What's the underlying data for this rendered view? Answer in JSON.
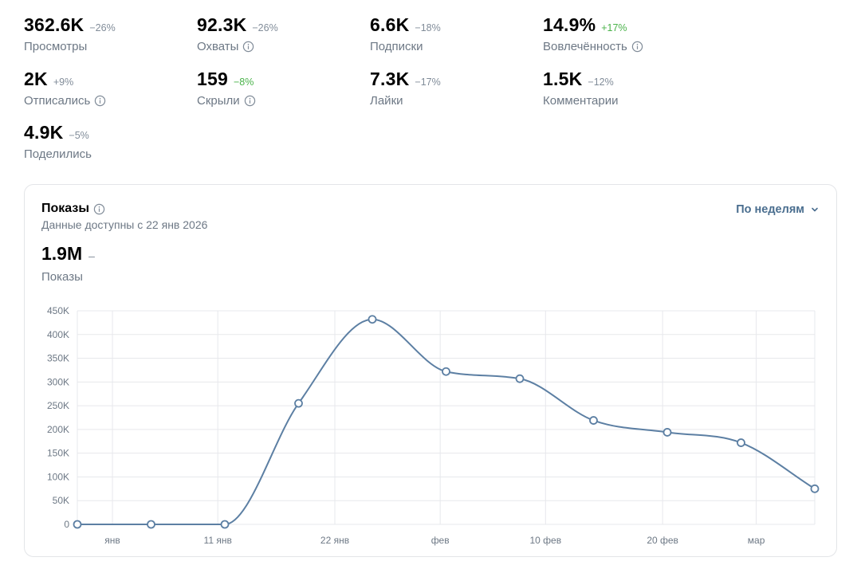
{
  "stats": [
    {
      "value": "362.6K",
      "delta": "−26%",
      "positive": false,
      "label": "Просмотры",
      "info": false
    },
    {
      "value": "92.3K",
      "delta": "−26%",
      "positive": false,
      "label": "Охваты",
      "info": true
    },
    {
      "value": "6.6K",
      "delta": "−18%",
      "positive": false,
      "label": "Подписки",
      "info": false
    },
    {
      "value": "14.9%",
      "delta": "+17%",
      "positive": true,
      "label": "Вовлечённость",
      "info": true
    },
    {
      "value": "2K",
      "delta": "+9%",
      "positive": false,
      "label": "Отписались",
      "info": true
    },
    {
      "value": "159",
      "delta": "−8%",
      "positive": true,
      "label": "Скрыли",
      "info": true
    },
    {
      "value": "7.3K",
      "delta": "−17%",
      "positive": false,
      "label": "Лайки",
      "info": false
    },
    {
      "value": "1.5K",
      "delta": "−12%",
      "positive": false,
      "label": "Комментарии",
      "info": false
    },
    {
      "value": "4.9K",
      "delta": "−5%",
      "positive": false,
      "label": "Поделились",
      "info": false
    }
  ],
  "card": {
    "title": "Показы",
    "subtitle": "Данные доступны с 22 янв 2026",
    "period_label": "По неделям",
    "total_value": "1.9M",
    "total_delta": "–",
    "total_label": "Показы"
  },
  "colors": {
    "line": "#5c7fa3",
    "grid": "#e7e8ec",
    "positive": "#4bb34b",
    "muted": "#818c99",
    "accent": "#4a6e8f"
  },
  "chart_data": {
    "type": "line",
    "title": "Показы",
    "ylim": [
      0,
      450000
    ],
    "y_ticks": [
      {
        "value": 0,
        "label": "0"
      },
      {
        "value": 50000,
        "label": "50K"
      },
      {
        "value": 100000,
        "label": "100K"
      },
      {
        "value": 150000,
        "label": "150K"
      },
      {
        "value": 200000,
        "label": "200K"
      },
      {
        "value": 250000,
        "label": "250K"
      },
      {
        "value": 300000,
        "label": "300K"
      },
      {
        "value": 350000,
        "label": "350K"
      },
      {
        "value": 400000,
        "label": "400K"
      },
      {
        "value": 450000,
        "label": "450K"
      }
    ],
    "x_range_days": [
      0,
      63
    ],
    "x_ticks": [
      {
        "day": 3,
        "label": "янв"
      },
      {
        "day": 12,
        "label": "11 янв"
      },
      {
        "day": 22,
        "label": "22 янв"
      },
      {
        "day": 31,
        "label": "фев"
      },
      {
        "day": 40,
        "label": "10 фев"
      },
      {
        "day": 50,
        "label": "20 фев"
      },
      {
        "day": 58,
        "label": "мар"
      }
    ],
    "series": [
      {
        "name": "Показы",
        "points": [
          {
            "day": 0,
            "value": 0
          },
          {
            "day": 6.3,
            "value": 0
          },
          {
            "day": 12.6,
            "value": 0
          },
          {
            "day": 18.9,
            "value": 255000
          },
          {
            "day": 25.2,
            "value": 432000
          },
          {
            "day": 31.5,
            "value": 322000
          },
          {
            "day": 37.8,
            "value": 307000
          },
          {
            "day": 44.1,
            "value": 219000
          },
          {
            "day": 50.4,
            "value": 194000
          },
          {
            "day": 56.7,
            "value": 172000
          },
          {
            "day": 63,
            "value": 75000
          }
        ]
      }
    ]
  }
}
